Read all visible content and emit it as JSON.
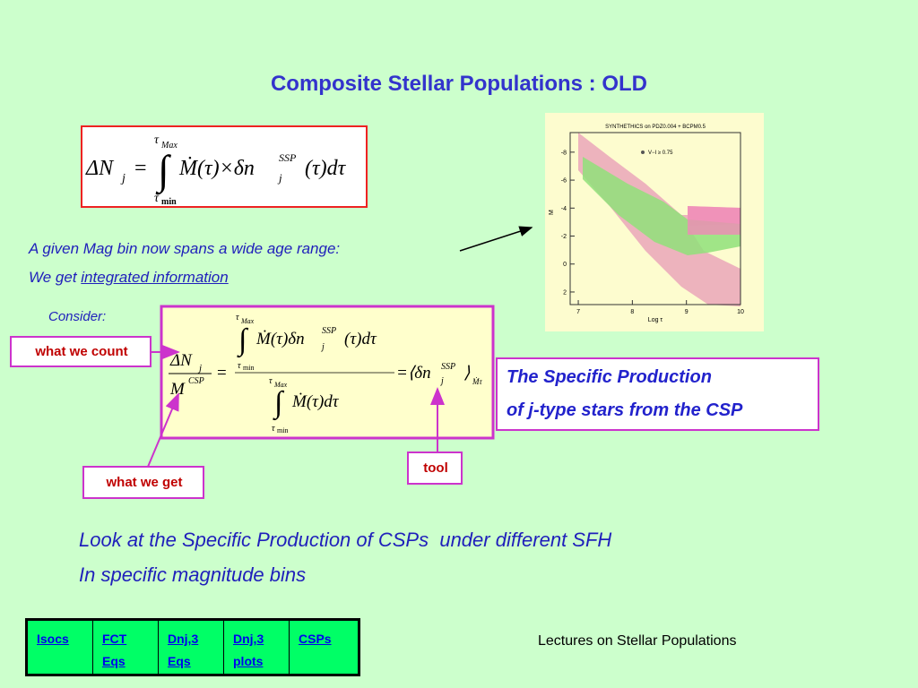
{
  "title": "Composite Stellar Populations : OLD",
  "equation1": {
    "delta_n": "ΔN",
    "j": "j",
    "equals": "=",
    "integral": "∫",
    "tau": "τ",
    "max": "Max",
    "min": "min",
    "integrand": "Ṁ(τ)×δn",
    "ssp": "SSP",
    "tail": "(τ)dτ"
  },
  "equation2": {
    "delta_n": "ΔN",
    "j": "j",
    "m": "M",
    "csp": "CSP",
    "equals": "=",
    "integral": "∫",
    "tau": "τ",
    "max": "Max",
    "min": "min",
    "numerator": "Ṁ(τ)δn",
    "ssp": "SSP",
    "tail": "(τ)dτ",
    "denominator": "Ṁ(τ)dτ",
    "result": "=⟨δn",
    "close": "⟩",
    "mtau": "Ṁτ"
  },
  "text": {
    "line1": "A given Mag bin now spans a wide age range:",
    "line2_prefix": "We get ",
    "line2_link": "integrated information",
    "consider": "Consider:"
  },
  "labels": {
    "count": "what we count",
    "get": "what we get",
    "tool": "tool"
  },
  "specific": [
    "The Specific Production",
    "of j-type stars from the CSP"
  ],
  "bottom": [
    "Look at the Specific Production of CSPs  under different SFH",
    "In specific magnitude bins"
  ],
  "footer": "Lectures on Stellar Populations",
  "nav": [
    [
      "Isocs"
    ],
    [
      "FCT",
      "Eqs"
    ],
    [
      "Dnj,3",
      "Eqs"
    ],
    [
      "Dnj,3",
      "plots"
    ],
    [
      "CSPs"
    ]
  ],
  "figure": {
    "title": "SYNTHETHICS on PDZ0.004 + BCPM0.5",
    "legend": "V−I ≥ 0.75",
    "ylabel": "M",
    "xlabel": "Log τ",
    "xlim": [
      6.85,
      10
    ],
    "ylim": [
      -9.4,
      2.9
    ],
    "xticks": [
      7,
      8,
      9,
      10
    ],
    "yticks": [
      -8,
      -6,
      -4,
      -2,
      0,
      2
    ]
  }
}
